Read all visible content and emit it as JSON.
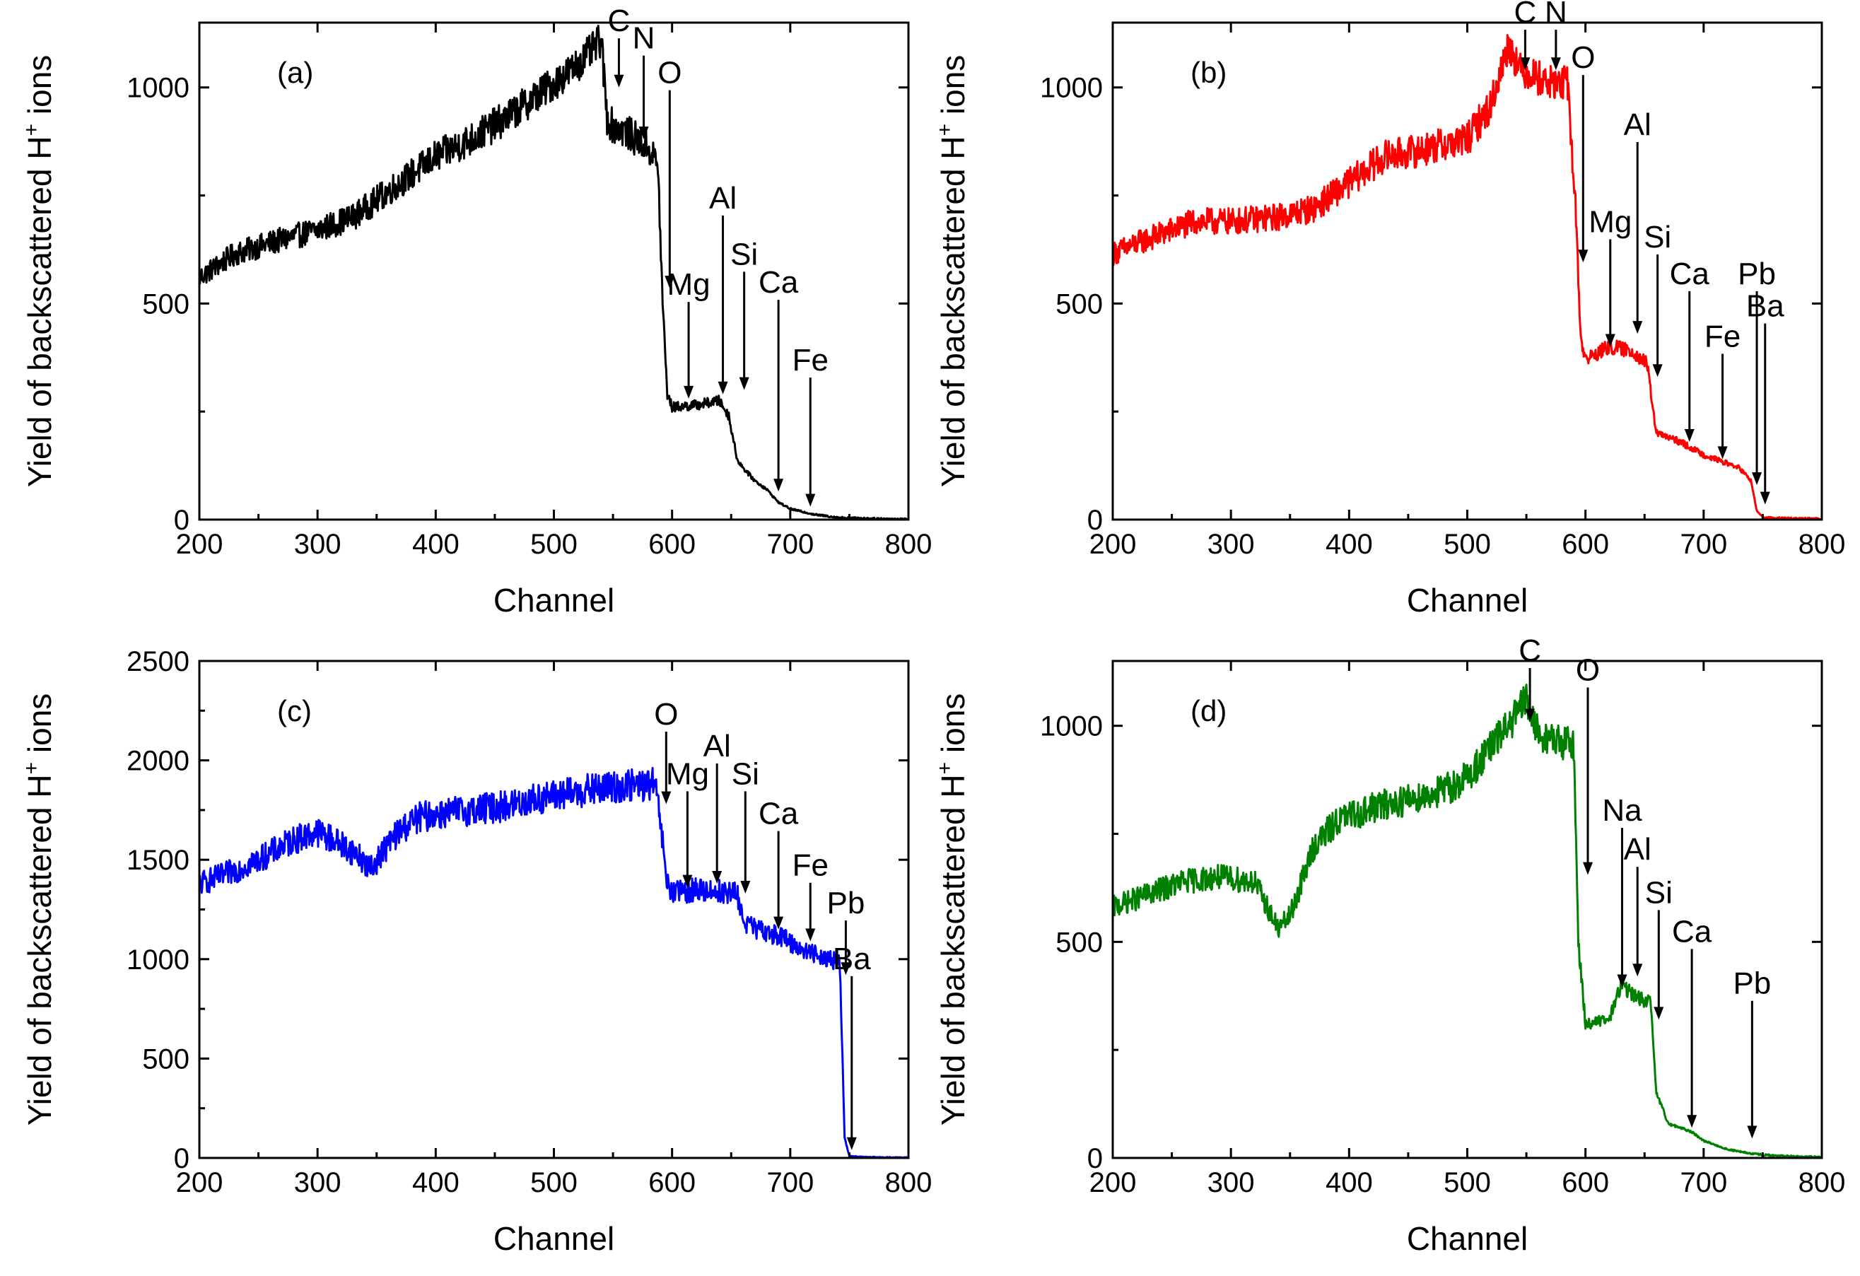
{
  "chart_data": [
    {
      "type": "line",
      "panel_label": "(a)",
      "color": "#000000",
      "xlabel": "Channel",
      "ylabel_main": "Yield of backscattered H",
      "ylabel_sup": "+",
      "ylabel_tail": " ions",
      "xlim": [
        200,
        800
      ],
      "ylim": [
        0,
        1150
      ],
      "xticks": [
        200,
        300,
        400,
        500,
        600,
        700,
        800
      ],
      "yticks": [
        0,
        500,
        1000
      ],
      "series": [
        {
          "name": "(a)",
          "x": [
            200,
            230,
            260,
            300,
            330,
            360,
            400,
            430,
            460,
            490,
            515,
            530,
            540,
            545,
            550,
            560,
            575,
            580,
            588,
            592,
            596,
            600,
            620,
            640,
            648,
            655,
            660,
            670,
            680,
            690,
            700,
            720,
            740,
            760,
            780,
            800
          ],
          "y": [
            560,
            615,
            640,
            670,
            700,
            760,
            840,
            880,
            930,
            990,
            1040,
            1080,
            1110,
            930,
            910,
            900,
            870,
            860,
            820,
            500,
            290,
            260,
            265,
            275,
            240,
            140,
            120,
            90,
            70,
            40,
            25,
            12,
            5,
            3,
            2,
            1
          ]
        }
      ],
      "annotations": [
        {
          "label": "C",
          "x": 555,
          "y_text": 1130,
          "y_tip": 1000
        },
        {
          "label": "N",
          "x": 576,
          "y_text": 1090,
          "y_tip": 880
        },
        {
          "label": "O",
          "x": 598,
          "y_text": 1010,
          "y_tip": 535
        },
        {
          "label": "Mg",
          "x": 614,
          "y_text": 520,
          "y_tip": 280
        },
        {
          "label": "Al",
          "x": 643,
          "y_text": 720,
          "y_tip": 290
        },
        {
          "label": "Si",
          "x": 661,
          "y_text": 590,
          "y_tip": 300
        },
        {
          "label": "Ca",
          "x": 690,
          "y_text": 525,
          "y_tip": 65
        },
        {
          "label": "Fe",
          "x": 717,
          "y_text": 345,
          "y_tip": 30
        }
      ]
    },
    {
      "type": "line",
      "panel_label": "(b)",
      "color": "#ff0000",
      "xlabel": "Channel",
      "ylabel_main": "Yield of backscattered H",
      "ylabel_sup": "+",
      "ylabel_tail": " ions",
      "xlim": [
        200,
        800
      ],
      "ylim": [
        0,
        1150
      ],
      "xticks": [
        200,
        300,
        400,
        500,
        600,
        700,
        800
      ],
      "yticks": [
        0,
        500,
        1000
      ],
      "series": [
        {
          "name": "(b)",
          "x": [
            200,
            230,
            270,
            300,
            340,
            370,
            400,
            430,
            460,
            500,
            520,
            535,
            545,
            555,
            570,
            585,
            592,
            596,
            600,
            620,
            640,
            652,
            660,
            680,
            700,
            720,
            730,
            740,
            745,
            750,
            770,
            800
          ],
          "y": [
            615,
            650,
            690,
            690,
            700,
            720,
            780,
            840,
            855,
            880,
            960,
            1100,
            1040,
            1030,
            1010,
            1010,
            700,
            420,
            370,
            400,
            390,
            360,
            200,
            180,
            150,
            130,
            120,
            90,
            20,
            5,
            3,
            2
          ]
        }
      ],
      "annotations": [
        {
          "label": "C",
          "x": 549,
          "y_text": 1150,
          "y_tip": 1040
        },
        {
          "label": "N",
          "x": 575,
          "y_text": 1150,
          "y_tip": 1040
        },
        {
          "label": "O",
          "x": 598,
          "y_text": 1045,
          "y_tip": 595
        },
        {
          "label": "Al",
          "x": 644,
          "y_text": 890,
          "y_tip": 430
        },
        {
          "label": "Mg",
          "x": 621,
          "y_text": 665,
          "y_tip": 400
        },
        {
          "label": "Si",
          "x": 661,
          "y_text": 630,
          "y_tip": 330
        },
        {
          "label": "Ca",
          "x": 688,
          "y_text": 545,
          "y_tip": 180
        },
        {
          "label": "Fe",
          "x": 716,
          "y_text": 400,
          "y_tip": 140
        },
        {
          "label": "Pb",
          "x": 745,
          "y_text": 545,
          "y_tip": 80
        },
        {
          "label": "Ba",
          "x": 752,
          "y_text": 470,
          "y_tip": 35
        }
      ]
    },
    {
      "type": "line",
      "panel_label": "(c)",
      "color": "#0000ff",
      "xlabel": "Channel",
      "ylabel_main": "Yield of backscattered H",
      "ylabel_sup": "+",
      "ylabel_tail": " ions",
      "xlim": [
        200,
        800
      ],
      "ylim": [
        0,
        2500
      ],
      "xticks": [
        200,
        300,
        400,
        500,
        600,
        700,
        800
      ],
      "yticks": [
        0,
        500,
        1000,
        1500,
        2000,
        2500
      ],
      "series": [
        {
          "name": "(c)",
          "x": [
            200,
            220,
            250,
            280,
            300,
            320,
            335,
            345,
            355,
            370,
            385,
            400,
            430,
            460,
            480,
            500,
            530,
            560,
            585,
            590,
            595,
            600,
            620,
            640,
            655,
            660,
            670,
            690,
            710,
            730,
            742,
            746,
            750,
            760,
            780,
            800
          ],
          "y": [
            1380,
            1420,
            1500,
            1600,
            1640,
            1580,
            1520,
            1450,
            1540,
            1650,
            1710,
            1730,
            1750,
            1770,
            1800,
            1820,
            1850,
            1870,
            1880,
            1700,
            1400,
            1330,
            1350,
            1340,
            1330,
            1200,
            1150,
            1120,
            1050,
            1010,
            980,
            100,
            10,
            5,
            3,
            2
          ]
        }
      ],
      "annotations": [
        {
          "label": "O",
          "x": 595,
          "y_text": 2180,
          "y_tip": 1780
        },
        {
          "label": "Mg",
          "x": 613,
          "y_text": 1880,
          "y_tip": 1360
        },
        {
          "label": "Al",
          "x": 638,
          "y_text": 2020,
          "y_tip": 1380
        },
        {
          "label": "Si",
          "x": 662,
          "y_text": 1880,
          "y_tip": 1330
        },
        {
          "label": "Ca",
          "x": 690,
          "y_text": 1680,
          "y_tip": 1150
        },
        {
          "label": "Fe",
          "x": 717,
          "y_text": 1420,
          "y_tip": 1090
        },
        {
          "label": "Pb",
          "x": 747,
          "y_text": 1230,
          "y_tip": 920
        },
        {
          "label": "Ba",
          "x": 752,
          "y_text": 950,
          "y_tip": 40
        }
      ]
    },
    {
      "type": "line",
      "panel_label": "(d)",
      "color": "#008000",
      "xlabel": "Channel",
      "ylabel_main": "Yield of backscattered H",
      "ylabel_sup": "+",
      "ylabel_tail": " ions",
      "xlim": [
        200,
        800
      ],
      "ylim": [
        0,
        1150
      ],
      "xticks": [
        200,
        300,
        400,
        500,
        600,
        700,
        800
      ],
      "yticks": [
        0,
        500,
        1000
      ],
      "series": [
        {
          "name": "(d)",
          "x": [
            200,
            230,
            260,
            290,
            320,
            340,
            350,
            360,
            370,
            390,
            420,
            450,
            480,
            500,
            520,
            540,
            550,
            560,
            580,
            590,
            594,
            600,
            620,
            630,
            645,
            655,
            660,
            670,
            680,
            690,
            700,
            720,
            740,
            760,
            780,
            800
          ],
          "y": [
            580,
            610,
            640,
            650,
            640,
            530,
            560,
            640,
            720,
            780,
            810,
            830,
            850,
            880,
            950,
            1020,
            1060,
            980,
            960,
            960,
            500,
            310,
            320,
            400,
            370,
            360,
            150,
            80,
            70,
            60,
            40,
            20,
            10,
            5,
            3,
            2
          ]
        }
      ],
      "annotations": [
        {
          "label": "C",
          "x": 553,
          "y_text": 1150,
          "y_tip": 1010
        },
        {
          "label": "O",
          "x": 602,
          "y_text": 1105,
          "y_tip": 655
        },
        {
          "label": "Na",
          "x": 631,
          "y_text": 780,
          "y_tip": 395
        },
        {
          "label": "Al",
          "x": 644,
          "y_text": 690,
          "y_tip": 420
        },
        {
          "label": "Si",
          "x": 662,
          "y_text": 590,
          "y_tip": 320
        },
        {
          "label": "Ca",
          "x": 690,
          "y_text": 500,
          "y_tip": 70
        },
        {
          "label": "Pb",
          "x": 741,
          "y_text": 380,
          "y_tip": 45
        }
      ]
    }
  ]
}
